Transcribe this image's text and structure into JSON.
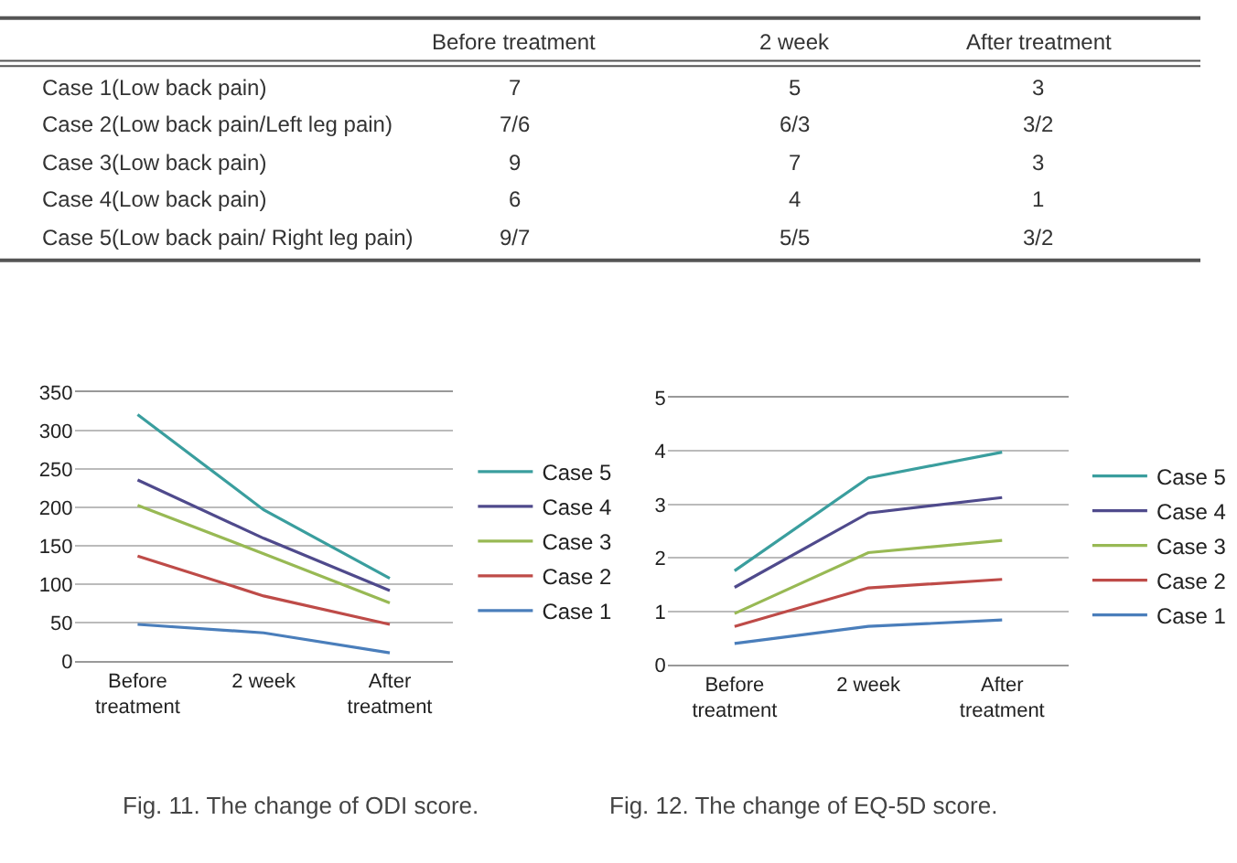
{
  "chart_data": [
    {
      "type": "other",
      "categories": [
        "Before treatment",
        "2 week",
        "After treatment"
      ],
      "y_categories": [
        "Case 1(Low back pain)",
        "Case 2(Low back pain/Left leg pain)",
        "Case 3(Low back pain)",
        "Case 4(Low back pain)",
        "Case 5(Low back pain/ Right leg pain)"
      ],
      "cell_labels": [
        [
          "7",
          "5",
          "3"
        ],
        [
          "7/6",
          "6/3",
          "3/2"
        ],
        [
          "9",
          "7",
          "3"
        ],
        [
          "6",
          "4",
          "1"
        ],
        [
          "9/7",
          "5/5",
          "3/2"
        ]
      ]
    },
    {
      "type": "line",
      "annotations": [
        "Fig. 11. The change of ODI score."
      ],
      "categories": [
        "Before treatment",
        "2 week",
        "After treatment"
      ],
      "ylim": [
        0,
        350
      ],
      "yticks": [
        0,
        50,
        100,
        150,
        200,
        250,
        300,
        350
      ],
      "grid": "y",
      "legend": "right",
      "marker": "none",
      "series": [
        {
          "name": "Case 1",
          "color": "#4a7ebb",
          "values": [
            48,
            37,
            11
          ]
        },
        {
          "name": "Case 2",
          "color": "#be4b48",
          "values": [
            137,
            85,
            48
          ]
        },
        {
          "name": "Case 3",
          "color": "#98b954",
          "values": [
            203,
            140,
            76
          ]
        },
        {
          "name": "Case 4",
          "color": "#4f4a8c",
          "values": [
            236,
            160,
            92
          ]
        },
        {
          "name": "Case 5",
          "color": "#3a9e9e",
          "values": [
            321,
            197,
            108
          ]
        }
      ]
    },
    {
      "type": "line",
      "annotations": [
        "Fig. 12. The change of EQ-5D score."
      ],
      "categories": [
        "Before treatment",
        "2 week",
        "After treatment"
      ],
      "ylim": [
        0,
        5
      ],
      "yticks": [
        0,
        1,
        2,
        3,
        4,
        5
      ],
      "grid": "y",
      "legend": "right",
      "marker": "none",
      "series": [
        {
          "name": "Case 1",
          "color": "#4a7ebb",
          "values": [
            0.4,
            0.72,
            0.84
          ]
        },
        {
          "name": "Case 2",
          "color": "#be4b48",
          "values": [
            0.72,
            1.44,
            1.6
          ]
        },
        {
          "name": "Case 3",
          "color": "#98b954",
          "values": [
            0.96,
            2.1,
            2.33
          ]
        },
        {
          "name": "Case 4",
          "color": "#4f4a8c",
          "values": [
            1.45,
            2.84,
            3.13
          ]
        },
        {
          "name": "Case 5",
          "color": "#3a9e9e",
          "values": [
            1.76,
            3.5,
            3.98
          ]
        }
      ]
    }
  ]
}
